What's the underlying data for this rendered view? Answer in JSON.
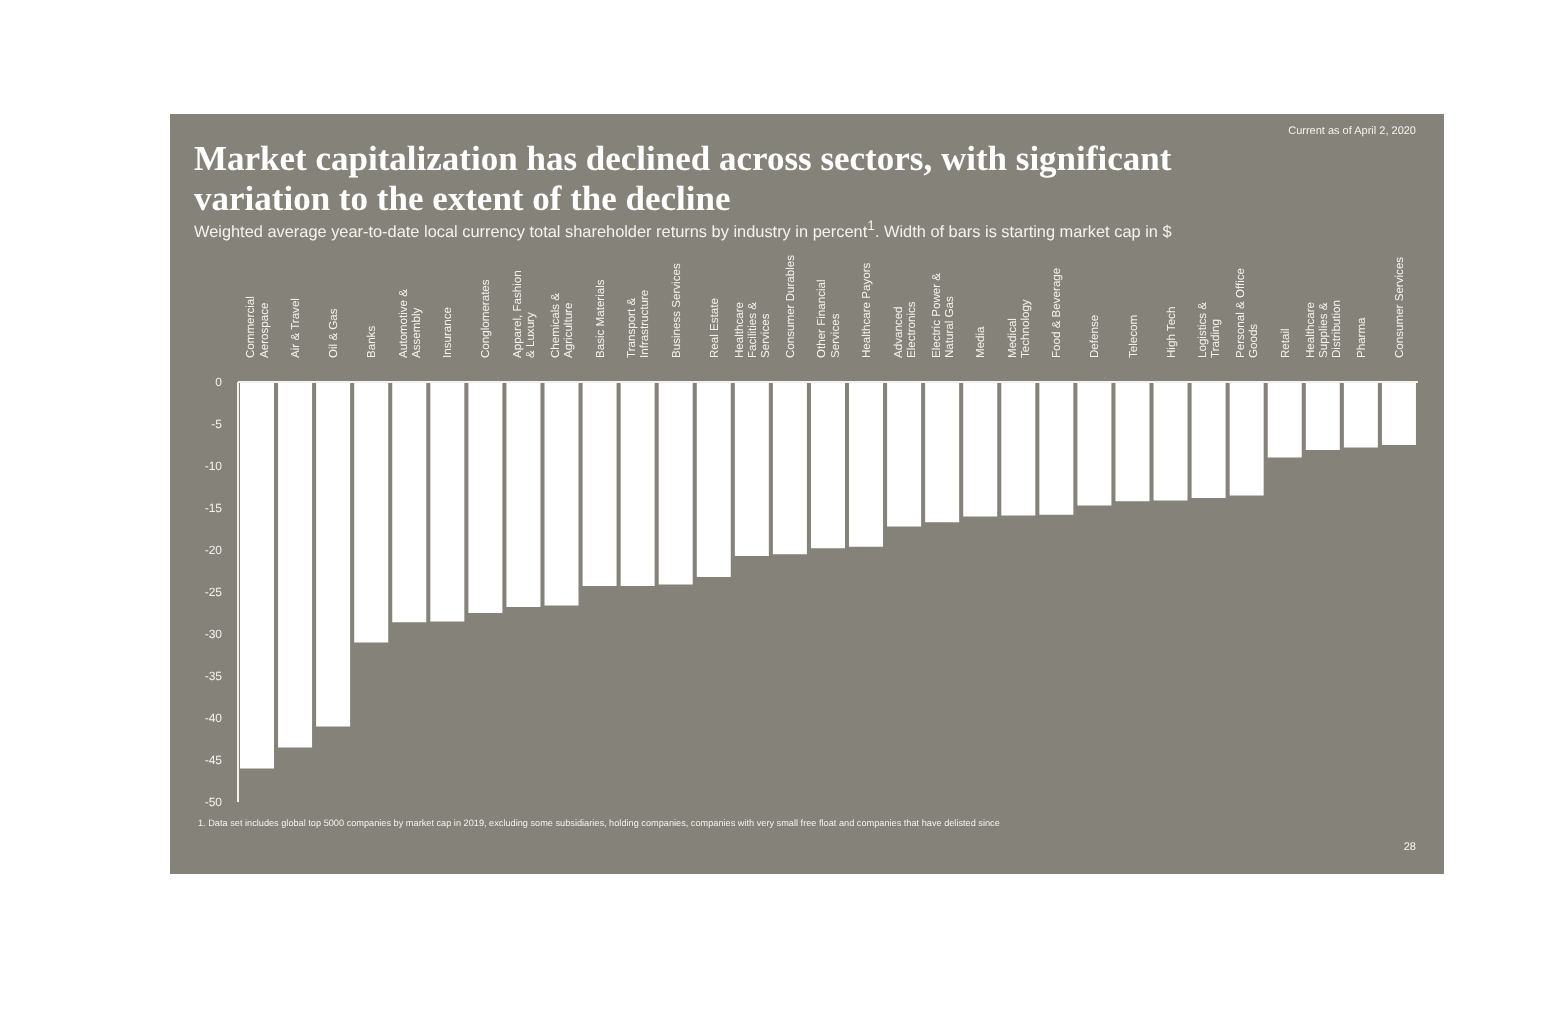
{
  "chart_data": {
    "type": "bar",
    "title": "Market capitalization has declined across sectors, with significant variation to the extent of the decline",
    "subtitle": "Weighted average year-to-date local currency total shareholder returns by industry in percent$^{1}$. Width of bars is starting market cap in $",
    "categories": [
      "Commercial Aerospace",
      "Air & Travel",
      "Oil & Gas",
      "Banks",
      "Automotive & Assembly",
      "Insurance",
      "Conglomerates",
      "Apparel, Fashion & Luxury",
      "Chemicals & Agriculture",
      "Basic Materials",
      "Transport & Infrastructure",
      "Business Services",
      "Real Estate",
      "Healthcare Facilities & Services",
      "Consumer Durables",
      "Other Financial Services",
      "Healthcare Payors",
      "Advanced Electronics",
      "Electric Power & Natural Gas",
      "Media",
      "Medical Technology",
      "Food & Beverage",
      "Defense",
      "Telecom",
      "High Tech",
      "Logistics & Trading",
      "Personal & Office Goods",
      "Retail",
      "Healthcare Supplies & Distribution",
      "Pharma",
      "Consumer Services"
    ],
    "values": [
      -46,
      -43.5,
      -41,
      -31,
      -28.6,
      -28.5,
      -27.5,
      -26.8,
      -26.6,
      -24.3,
      -24.3,
      -24.1,
      -23.2,
      -20.7,
      -20.5,
      -19.8,
      -19.6,
      -17.2,
      -16.7,
      -16,
      -15.9,
      -15.8,
      -14.7,
      -14.2,
      -14.1,
      -13.8,
      -13.5,
      -9,
      -8.1,
      -7.8,
      -7.5
    ],
    "color": "#ffffff",
    "ylim": [
      -50,
      0
    ],
    "yticks": [
      0,
      -5,
      -10,
      -15,
      -20,
      -25,
      -30,
      -35,
      -40,
      -45,
      -50
    ],
    "annotations": [
      "Current as of April 2, 2020",
      "1.   Data set includes global top 5000 companies by market cap in 2019, excluding some subsidiaries, holding companies, companies with very small free float and companies that have delisted since",
      "28"
    ]
  }
}
